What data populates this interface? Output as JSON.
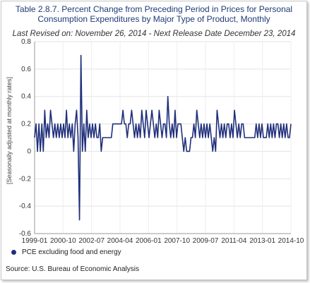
{
  "chart_data": {
    "type": "line",
    "title": "Table 2.8.7. Percent Change from Preceding Period in Prices for Personal Consumption Expenditures by Major Type of Product, Monthly",
    "title_lines": [
      "Table 2.8.7. Percent Change from Preceding Period in Prices for Personal",
      "Consumption Expenditures by Major Type of Product, Monthly"
    ],
    "subtitle": "Last Revised on: November 26, 2014 - Next Release Date December 23, 2014",
    "ylabel": "[Seasonally adjusted at monthly rates]",
    "ylim": [
      -0.6,
      0.8
    ],
    "yticks": [
      "-0.6",
      "-0.4",
      "-0.2",
      "0",
      "0.2",
      "0.4",
      "0.6",
      "0.8"
    ],
    "xtick_labels": [
      "1999-01",
      "2000-10",
      "2002-07",
      "2004-04",
      "2006-01",
      "2007-10",
      "2009-07",
      "2011-04",
      "2013-01",
      "2014-10"
    ],
    "grid": true,
    "legend_position": "bottom-left",
    "line_color": "#1f2f7a",
    "series": [
      {
        "name": "PCE excluding food and energy",
        "values": [
          0.1,
          0.2,
          0.0,
          0.2,
          0.0,
          0.2,
          0.0,
          0.3,
          0.1,
          0.2,
          0.1,
          0.3,
          0.2,
          0.1,
          0.2,
          0.1,
          0.2,
          0.1,
          0.2,
          0.1,
          0.2,
          0.1,
          0.3,
          0.1,
          0.2,
          0.1,
          0.2,
          0.0,
          0.2,
          0.3,
          0.1,
          -0.5,
          0.7,
          0.0,
          0.2,
          0.0,
          0.3,
          0.1,
          0.2,
          0.1,
          0.2,
          0.1,
          0.2,
          0.1,
          0.1,
          0.2,
          0.0,
          0.1,
          0.1,
          0.1,
          0.1,
          0.1,
          0.1,
          0.1,
          0.2,
          0.2,
          0.2,
          0.2,
          0.2,
          0.2,
          0.2,
          0.3,
          0.2,
          0.2,
          0.1,
          0.2,
          0.2,
          0.3,
          0.2,
          0.1,
          0.2,
          0.1,
          0.2,
          0.1,
          0.3,
          0.2,
          0.1,
          0.3,
          0.2,
          0.1,
          0.2,
          0.3,
          0.2,
          0.1,
          0.2,
          0.1,
          0.3,
          0.2,
          0.1,
          0.2,
          0.2,
          0.1,
          0.4,
          0.2,
          0.1,
          0.2,
          0.1,
          0.3,
          0.1,
          0.2,
          0.2,
          0.2,
          0.1,
          0.0,
          0.1,
          0.0,
          0.0,
          0.0,
          0.1,
          0.1,
          0.2,
          0.1,
          0.3,
          0.2,
          0.1,
          0.2,
          0.1,
          0.2,
          0.1,
          0.2,
          0.1,
          0.2,
          0.1,
          0.0,
          0.1,
          0.0,
          0.3,
          0.2,
          0.1,
          0.2,
          0.1,
          0.2,
          0.1,
          0.2,
          0.2,
          0.1,
          0.2,
          0.1,
          0.3,
          0.2,
          0.1,
          0.2,
          0.1,
          0.2,
          0.2,
          0.1,
          0.1,
          0.1,
          0.1,
          0.1,
          0.1,
          0.1,
          0.1,
          0.2,
          0.1,
          0.2,
          0.1,
          0.2,
          0.1,
          0.1,
          0.1,
          0.2,
          0.1,
          0.2,
          0.1,
          0.2,
          0.1,
          0.2,
          0.2,
          0.1,
          0.2,
          0.1,
          0.2,
          0.1,
          0.2,
          0.1,
          0.1,
          0.2
        ]
      }
    ]
  },
  "legend": {
    "label": "PCE excluding food and energy"
  },
  "source": "Source: U.S. Bureau of Economic  Analysis"
}
